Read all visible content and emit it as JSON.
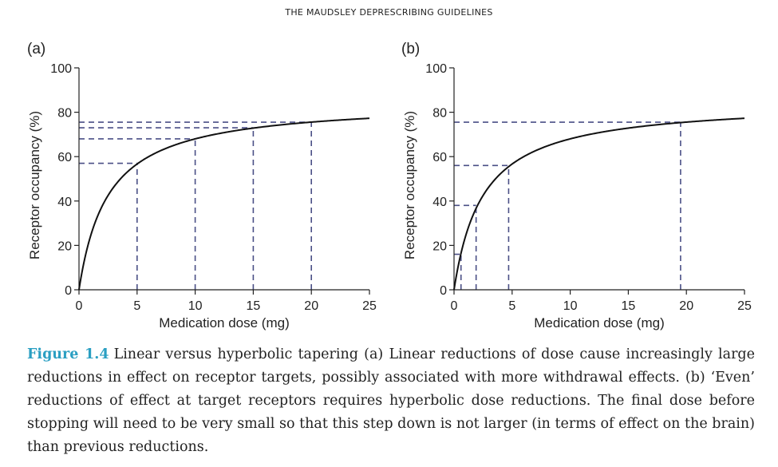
{
  "header": {
    "title": "THE MAUDSLEY DEPRESCRIBING GUIDELINES"
  },
  "chart_data": [
    {
      "type": "line",
      "panel_label": "(a)",
      "xlabel": "Medication dose (mg)",
      "ylabel": "Receptor occupancy (%)",
      "xlim": [
        0,
        25
      ],
      "ylim": [
        0,
        100
      ],
      "xticks": [
        "0",
        "5",
        "10",
        "15",
        "20",
        "25"
      ],
      "yticks": [
        "0",
        "20",
        "40",
        "60",
        "80",
        "100"
      ],
      "curve": {
        "emax": 85,
        "ec50": 2.5
      },
      "guides": [
        {
          "x": 5,
          "y": 57
        },
        {
          "x": 10,
          "y": 68
        },
        {
          "x": 15,
          "y": 73
        },
        {
          "x": 20,
          "y": 75.5
        }
      ]
    },
    {
      "type": "line",
      "panel_label": "(b)",
      "xlabel": "Medication dose (mg)",
      "ylabel": "Receptor occupancy (%)",
      "xlim": [
        0,
        25
      ],
      "ylim": [
        0,
        100
      ],
      "xticks": [
        "0",
        "5",
        "10",
        "15",
        "20",
        "25"
      ],
      "yticks": [
        "0",
        "20",
        "40",
        "60",
        "80",
        "100"
      ],
      "curve": {
        "emax": 85,
        "ec50": 2.5
      },
      "guides": [
        {
          "x": 0.6,
          "y": 16
        },
        {
          "x": 1.9,
          "y": 38
        },
        {
          "x": 4.7,
          "y": 56
        },
        {
          "x": 19.5,
          "y": 75.5
        }
      ]
    }
  ],
  "caption": {
    "figure_label": "Figure 1.4",
    "text": "Linear versus hyperbolic tapering (a) Linear reductions of dose cause increasingly large reductions in effect on receptor targets, possibly associated with more withdrawal effects. (b) ‘Even’ reductions of effect at target receptors requires hyperbolic dose reductions. The final dose before stopping will need to be very small so that this step down is not larger (in terms of effect on the brain) than previous reductions."
  }
}
